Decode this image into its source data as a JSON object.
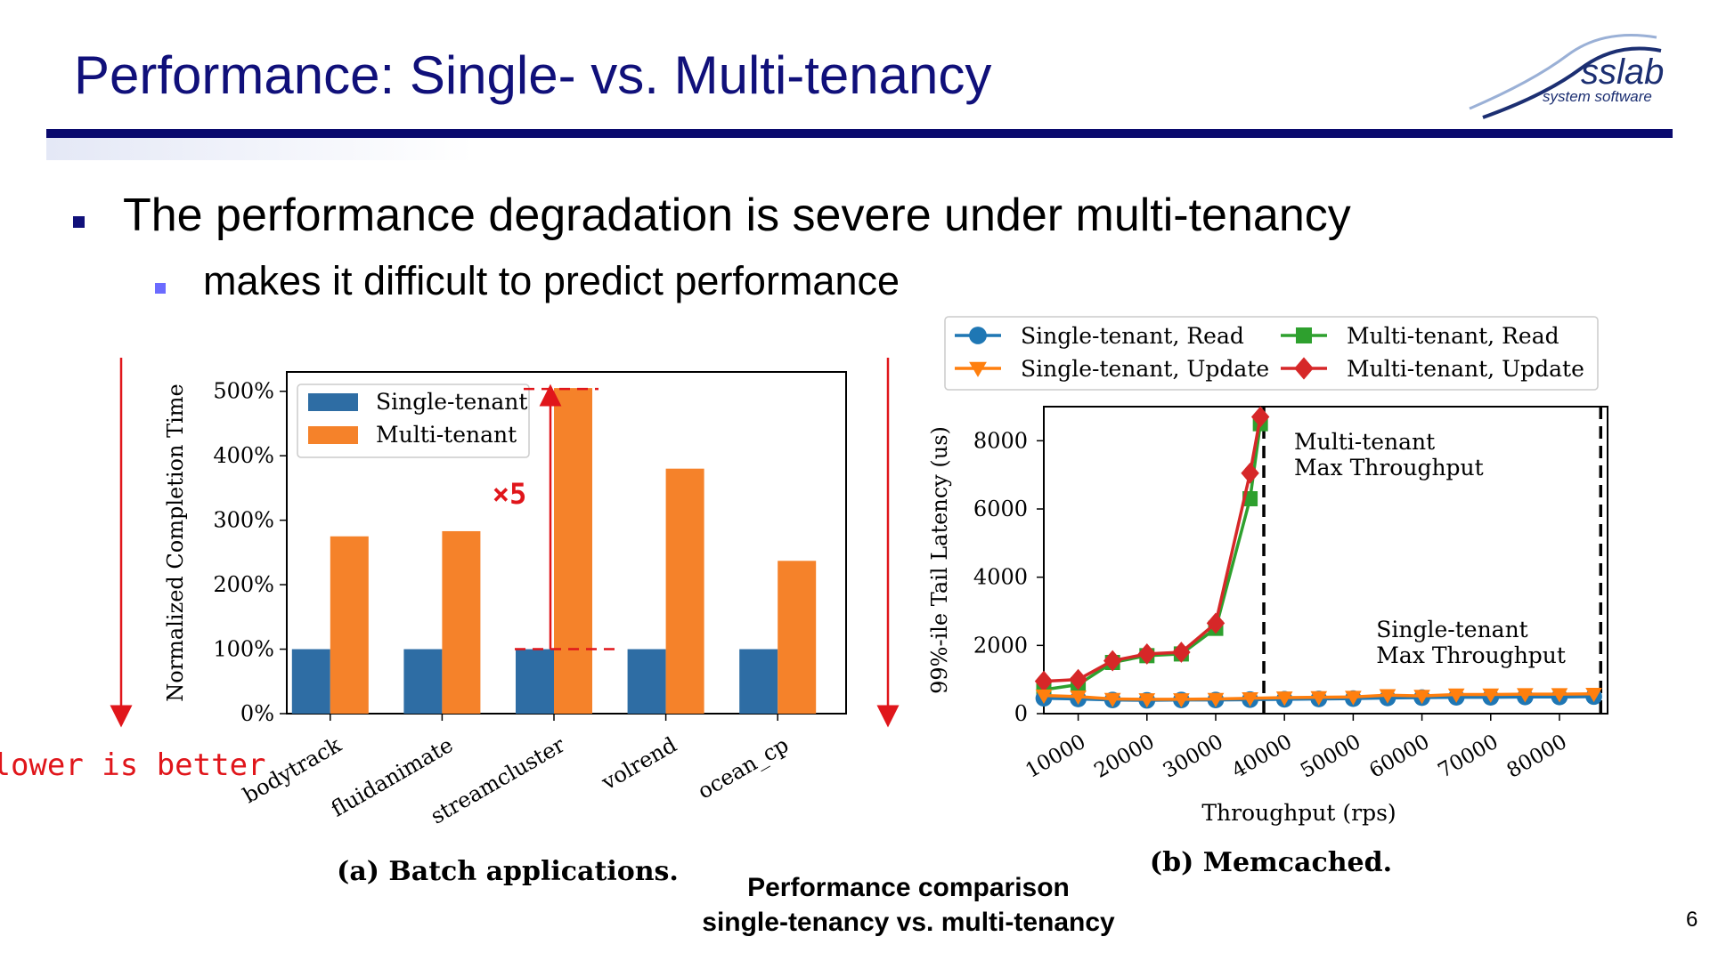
{
  "slide": {
    "title": "Performance: Single- vs. Multi-tenancy",
    "bullets": [
      {
        "level": 1,
        "text": "The performance degradation is severe under multi-tenancy"
      },
      {
        "level": 2,
        "text": "makes it difficult to predict performance"
      }
    ],
    "caption_line1": "Performance comparison",
    "caption_line2": "single-tenancy vs. multi-tenancy",
    "page_number": "6",
    "logo": {
      "text": "sslab",
      "subtext": "system software"
    },
    "annotation_lower": "lower is better",
    "annotation_x5": "×5",
    "colors": {
      "title": "#10107a",
      "rule": "#0a0a6e",
      "annotation": "#e0161b",
      "single": "#2e6da4",
      "multi": "#f5822a",
      "multi_read": "#2ea02e",
      "multi_update": "#d62728",
      "single_read": "#1f77b4",
      "single_update": "#ff7f0e"
    }
  },
  "chart_data": [
    {
      "type": "bar",
      "caption": "(a) Batch applications.",
      "ylabel": "Normalized Completion Time",
      "categories": [
        "bodytrack",
        "fluidanimate",
        "streamcluster",
        "volrend",
        "ocean_cp"
      ],
      "series": [
        {
          "name": "Single-tenant",
          "values": [
            100,
            100,
            100,
            100,
            100
          ]
        },
        {
          "name": "Multi-tenant",
          "values": [
            275,
            283,
            505,
            380,
            237
          ]
        }
      ],
      "ylim": [
        0,
        530
      ],
      "yticks": [
        "0%",
        "100%",
        "200%",
        "300%",
        "400%",
        "500%"
      ],
      "legend_position": "top-left"
    },
    {
      "type": "line",
      "caption": "(b) Memcached.",
      "xlabel": "Throughput (rps)",
      "ylabel": "99%-ile Tail Latency (us)",
      "xticks": [
        "10000",
        "20000",
        "30000",
        "40000",
        "50000",
        "60000",
        "70000",
        "80000"
      ],
      "yticks": [
        "0",
        "2000",
        "4000",
        "6000",
        "8000"
      ],
      "xlim": [
        5000,
        87000
      ],
      "ylim": [
        0,
        9000
      ],
      "legend_position": "top (above plot)",
      "series": [
        {
          "name": "Single-tenant, Read",
          "marker": "circle",
          "x": [
            5000,
            10000,
            15000,
            20000,
            25000,
            30000,
            35000,
            40000,
            45000,
            50000,
            55000,
            60000,
            65000,
            70000,
            75000,
            80000,
            85000
          ],
          "y": [
            450,
            430,
            400,
            390,
            400,
            400,
            410,
            420,
            430,
            440,
            460,
            470,
            480,
            480,
            490,
            490,
            500
          ]
        },
        {
          "name": "Single-tenant, Update",
          "marker": "triangle-down",
          "x": [
            5000,
            10000,
            15000,
            20000,
            25000,
            30000,
            35000,
            40000,
            45000,
            50000,
            55000,
            60000,
            65000,
            70000,
            75000,
            80000,
            85000
          ],
          "y": [
            530,
            500,
            430,
            420,
            420,
            430,
            450,
            470,
            480,
            490,
            540,
            520,
            560,
            560,
            570,
            570,
            580
          ]
        },
        {
          "name": "Multi-tenant, Read",
          "marker": "square",
          "x": [
            5000,
            10000,
            15000,
            20000,
            25000,
            30000,
            35000,
            36500
          ],
          "y": [
            700,
            850,
            1500,
            1700,
            1750,
            2500,
            6300,
            8500
          ]
        },
        {
          "name": "Multi-tenant, Update",
          "marker": "diamond",
          "x": [
            5000,
            10000,
            15000,
            20000,
            25000,
            30000,
            35000,
            36500
          ],
          "y": [
            950,
            1000,
            1550,
            1750,
            1800,
            2650,
            7050,
            8700
          ]
        }
      ],
      "vlines": [
        {
          "x": 37000,
          "label_line1": "Multi-tenant",
          "label_line2": "Max Throughput"
        },
        {
          "x": 86000,
          "label_line1": "Single-tenant",
          "label_line2": "Max Throughput"
        }
      ]
    }
  ]
}
